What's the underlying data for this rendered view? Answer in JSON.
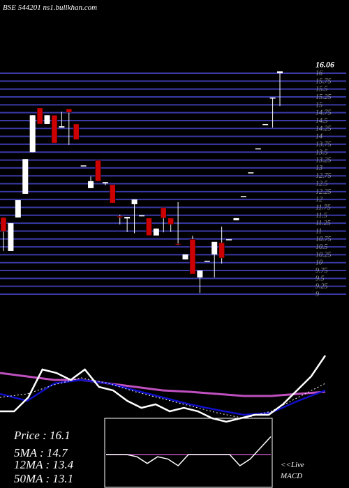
{
  "header": "BSE 544201 ns1.bullkhan.com",
  "chart_data": [
    {
      "type": "candlestick",
      "ylim": [
        9,
        16.2
      ],
      "up_color": "#ffffff",
      "down_color": "#cc0000",
      "grid": true,
      "grid_color": "#3a3aa8",
      "yticks": [
        9,
        9.25,
        9.5,
        9.75,
        10,
        10.25,
        10.5,
        10.75,
        11,
        11.25,
        11.5,
        11.75,
        12,
        12.25,
        12.5,
        12.75,
        13,
        13.25,
        13.5,
        13.75,
        14,
        14.25,
        14.5,
        14.75,
        15,
        15.25,
        15.5,
        15.75,
        16
      ],
      "open": [
        11.43,
        10.37,
        11.43,
        12.18,
        13.5,
        14.9,
        14.39,
        14.67,
        14.28,
        14.87,
        14.39,
        13.08,
        12.36,
        13.24,
        12.51,
        12.47,
        11.47,
        11.4,
        11.85,
        11.47,
        11.41,
        10.86,
        11.74,
        11.41,
        10.6,
        10.1,
        10.74,
        9.53,
        10.06,
        10.26,
        10.63,
        10.74,
        11.34,
        12.11,
        12.86,
        13.62,
        14.39,
        15.2,
        16.0
      ],
      "high": [
        11.43,
        11.25,
        11.98,
        13.28,
        14.67,
        14.9,
        14.67,
        14.67,
        14.78,
        14.87,
        14.39,
        13.08,
        12.73,
        13.24,
        12.55,
        12.47,
        11.52,
        11.45,
        12.0,
        11.5,
        11.41,
        11.08,
        11.74,
        11.41,
        11.92,
        10.26,
        10.85,
        9.75,
        10.06,
        10.66,
        11.14,
        10.74,
        11.41,
        12.11,
        12.86,
        13.62,
        14.39,
        15.23,
        16.06
      ],
      "low": [
        10.37,
        10.37,
        11.43,
        12.18,
        13.5,
        14.39,
        14.39,
        13.79,
        14.28,
        13.73,
        13.9,
        13.08,
        12.36,
        12.58,
        12.45,
        11.89,
        11.21,
        10.97,
        10.93,
        11.47,
        10.86,
        10.86,
        10.96,
        10.97,
        10.55,
        10.1,
        9.64,
        9.04,
        10.06,
        9.53,
        9.97,
        10.74,
        11.34,
        12.11,
        12.86,
        13.62,
        14.39,
        14.28,
        14.96
      ],
      "close": [
        10.99,
        11.25,
        11.98,
        13.28,
        14.67,
        14.39,
        14.67,
        13.79,
        14.32,
        14.76,
        13.9,
        13.08,
        12.58,
        12.58,
        12.55,
        11.89,
        11.43,
        11.45,
        12.0,
        11.5,
        10.86,
        11.08,
        11.41,
        11.21,
        10.57,
        10.26,
        9.64,
        9.75,
        10.06,
        10.66,
        10.15,
        10.74,
        11.41,
        12.11,
        12.86,
        13.62,
        14.39,
        15.23,
        16.06
      ]
    },
    {
      "type": "line",
      "ylim": [
        -10,
        100
      ],
      "series": [
        {
          "color": "#c050c0",
          "width": 3,
          "values": [
            65,
            60,
            55,
            55,
            50,
            45,
            40,
            38,
            35,
            32,
            32,
            35,
            38
          ]
        },
        {
          "color": "#1010c8",
          "width": 2.5,
          "values": [
            35,
            25,
            50,
            55,
            50,
            40,
            30,
            20,
            12,
            5,
            8,
            25,
            40
          ]
        },
        {
          "color": "#ffffff",
          "width": 1,
          "dashed": true,
          "values": [
            30,
            35,
            48,
            58,
            50,
            38,
            28,
            18,
            8,
            0,
            10,
            30,
            50
          ]
        },
        {
          "color": "#ffffff",
          "width": 2.5,
          "values": [
            10,
            10,
            30,
            70,
            65,
            55,
            70,
            45,
            40,
            25,
            15,
            20,
            10,
            15,
            10,
            0,
            -5,
            0,
            5,
            5,
            20,
            40,
            60,
            90
          ]
        }
      ]
    },
    {
      "type": "line",
      "ylim": [
        -10,
        10
      ],
      "series": [
        {
          "color": "#c050c0",
          "width": 1.5,
          "values": [
            0,
            0,
            0,
            0,
            0,
            0,
            0,
            0,
            0,
            0,
            0,
            0,
            0,
            0,
            0,
            0,
            0
          ]
        },
        {
          "color": "#ffffff",
          "width": 1.5,
          "values": [
            0,
            0,
            0,
            -1,
            -4,
            -1,
            -2,
            -5,
            0,
            0,
            0,
            0,
            0,
            -5,
            -2,
            3,
            8
          ]
        }
      ]
    }
  ],
  "info": [
    "Price  : 16.1",
    "5MA : 14.7",
    "12MA : 13.4",
    "50MA : 13.1"
  ],
  "macd_label": [
    "<<Live",
    "MACD"
  ]
}
